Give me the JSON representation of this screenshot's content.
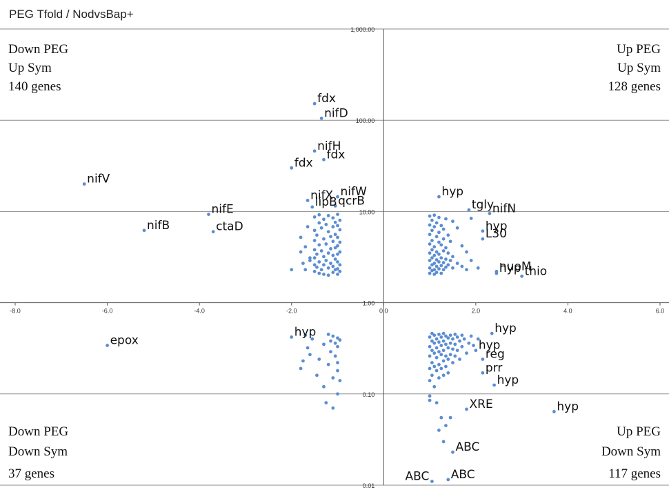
{
  "chart_data": {
    "type": "scatter",
    "title": "PEG Tfold / NodvsBap+",
    "x_axis": {
      "min": -8,
      "max": 6,
      "ticks": [
        "-8.0",
        "-6.0",
        "-4.0",
        "-2.0",
        "0.0",
        "2.0",
        "4.0",
        "6.0"
      ],
      "tick_values": [
        -8,
        -6,
        -4,
        -2,
        0,
        2,
        4,
        6
      ]
    },
    "y_axis": {
      "scale": "log",
      "min": 0.01,
      "max": 1000,
      "ticks": [
        "0.01",
        "0.10",
        "1.00",
        "10.00",
        "100.00",
        "1,000.00"
      ],
      "tick_values": [
        0.01,
        0.1,
        1,
        10,
        100,
        1000
      ]
    },
    "grid": "horizontal",
    "quadrants": {
      "top_left": [
        "Down PEG",
        "Up Sym",
        "140 genes"
      ],
      "top_right": [
        "Up PEG",
        "Up Sym",
        "128 genes"
      ],
      "bottom_left": [
        "Down PEG",
        "Down Sym",
        "37 genes"
      ],
      "bottom_right": [
        "Up PEG",
        "Down Sym",
        "117  genes"
      ]
    },
    "annotations": [
      {
        "label": "fdx",
        "x": -1.5,
        "y": 152
      },
      {
        "label": "nifD",
        "x": -1.35,
        "y": 105
      },
      {
        "label": "nifH",
        "x": -1.5,
        "y": 46
      },
      {
        "label": "fdx",
        "x": -1.3,
        "y": 37
      },
      {
        "label": "fdx",
        "x": -2.0,
        "y": 30
      },
      {
        "label": "nifV",
        "x": -6.5,
        "y": 20
      },
      {
        "label": "nifX",
        "x": -1.65,
        "y": 13.2
      },
      {
        "label": "nifW",
        "x": -1.0,
        "y": 14.5
      },
      {
        "label": "lipB",
        "x": -1.55,
        "y": 11.2
      },
      {
        "label": "qcrB",
        "x": -1.05,
        "y": 11.5
      },
      {
        "label": "nifE",
        "x": -3.8,
        "y": 9.3
      },
      {
        "label": "nifB",
        "x": -5.2,
        "y": 6.2
      },
      {
        "label": "ctaD",
        "x": -3.7,
        "y": 6.0
      },
      {
        "label": "hyp",
        "x": 1.2,
        "y": 14.5
      },
      {
        "label": "tgly",
        "x": 1.85,
        "y": 10.4
      },
      {
        "label": "nifN",
        "x": 2.3,
        "y": 9.5
      },
      {
        "label": "hyp",
        "x": 2.15,
        "y": 6.1
      },
      {
        "label": "L30",
        "x": 2.15,
        "y": 5.0
      },
      {
        "label": "nuoM",
        "x": 2.45,
        "y": 2.2
      },
      {
        "label": "hyp",
        "x": 2.45,
        "y": 2.1
      },
      {
        "label": "thio",
        "x": 3.0,
        "y": 1.95
      },
      {
        "label": "epox",
        "x": -6.0,
        "y": 0.34
      },
      {
        "label": "hyp",
        "x": -2.0,
        "y": 0.42
      },
      {
        "label": "hyp",
        "x": 2.35,
        "y": 0.46
      },
      {
        "label": "hyp",
        "x": 2.0,
        "y": 0.3
      },
      {
        "label": "reg",
        "x": 2.15,
        "y": 0.24
      },
      {
        "label": "prr",
        "x": 2.15,
        "y": 0.17
      },
      {
        "label": "hyp",
        "x": 2.4,
        "y": 0.125
      },
      {
        "label": "XRE",
        "x": 1.8,
        "y": 0.068
      },
      {
        "label": "hyp",
        "x": 3.7,
        "y": 0.064
      },
      {
        "label": "ABC",
        "x": 1.5,
        "y": 0.023
      },
      {
        "label": "ABC",
        "x": 1.4,
        "y": 0.0115
      },
      {
        "label": "ABC",
        "x": 1.05,
        "y": 0.011
      }
    ],
    "points": [
      [
        -1.5,
        152
      ],
      [
        -1.35,
        105
      ],
      [
        -1.5,
        46
      ],
      [
        -1.3,
        37
      ],
      [
        -2.0,
        30
      ],
      [
        -6.5,
        20
      ],
      [
        -1.65,
        13.2
      ],
      [
        -1.0,
        14.5
      ],
      [
        -1.55,
        11.2
      ],
      [
        -1.05,
        11.5
      ],
      [
        -3.8,
        9.3
      ],
      [
        -5.2,
        6.2
      ],
      [
        -3.7,
        6.0
      ],
      [
        -2.0,
        2.3
      ],
      [
        -1.8,
        5.2
      ],
      [
        -1.8,
        3.6
      ],
      [
        -1.75,
        2.7
      ],
      [
        -1.7,
        4.1
      ],
      [
        -1.7,
        2.3
      ],
      [
        -1.65,
        6.8
      ],
      [
        -1.6,
        2.9
      ],
      [
        -1.6,
        3.1
      ],
      [
        -1.5,
        8.7
      ],
      [
        -1.5,
        6.2
      ],
      [
        -1.5,
        4.8
      ],
      [
        -1.5,
        3.8
      ],
      [
        -1.5,
        3.1
      ],
      [
        -1.5,
        2.6
      ],
      [
        -1.5,
        2.2
      ],
      [
        -1.45,
        5.5
      ],
      [
        -1.45,
        3.4
      ],
      [
        -1.45,
        2.45
      ],
      [
        -1.4,
        9.2
      ],
      [
        -1.4,
        7.5
      ],
      [
        -1.4,
        4.3
      ],
      [
        -1.4,
        2.8
      ],
      [
        -1.4,
        2.1
      ],
      [
        -1.35,
        6.6
      ],
      [
        -1.35,
        3.7
      ],
      [
        -1.35,
        2.3
      ],
      [
        -1.3,
        8.2
      ],
      [
        -1.3,
        5.0
      ],
      [
        -1.3,
        3.2
      ],
      [
        -1.3,
        2.6
      ],
      [
        -1.3,
        2.05
      ],
      [
        -1.25,
        7.2
      ],
      [
        -1.25,
        4.4
      ],
      [
        -1.25,
        2.9
      ],
      [
        -1.2,
        9.0
      ],
      [
        -1.2,
        6.0
      ],
      [
        -1.2,
        3.5
      ],
      [
        -1.2,
        2.4
      ],
      [
        -1.2,
        2.0
      ],
      [
        -1.15,
        5.3
      ],
      [
        -1.15,
        3.9
      ],
      [
        -1.15,
        2.7
      ],
      [
        -1.1,
        8.5
      ],
      [
        -1.1,
        6.8
      ],
      [
        -1.1,
        4.7
      ],
      [
        -1.1,
        3.3
      ],
      [
        -1.1,
        2.5
      ],
      [
        -1.1,
        2.15
      ],
      [
        -1.05,
        7.6
      ],
      [
        -1.05,
        5.6
      ],
      [
        -1.05,
        4.0
      ],
      [
        -1.05,
        3.0
      ],
      [
        -1.05,
        2.3
      ],
      [
        -1.0,
        9.3
      ],
      [
        -1.0,
        7.0
      ],
      [
        -1.0,
        5.2
      ],
      [
        -1.0,
        4.2
      ],
      [
        -1.0,
        3.4
      ],
      [
        -1.0,
        2.8
      ],
      [
        -1.0,
        2.35
      ],
      [
        -1.0,
        2.05
      ],
      [
        -0.95,
        8.0
      ],
      [
        -0.95,
        6.3
      ],
      [
        -0.95,
        4.6
      ],
      [
        -0.95,
        3.6
      ],
      [
        -0.95,
        2.6
      ],
      [
        -0.95,
        2.2
      ],
      [
        1.2,
        14.5
      ],
      [
        1.85,
        10.4
      ],
      [
        2.3,
        9.5
      ],
      [
        2.15,
        6.1
      ],
      [
        2.15,
        5.0
      ],
      [
        2.45,
        2.2
      ],
      [
        2.45,
        2.1
      ],
      [
        3.0,
        1.95
      ],
      [
        1.0,
        8.9
      ],
      [
        1.0,
        7.1
      ],
      [
        1.0,
        5.6
      ],
      [
        1.0,
        4.4
      ],
      [
        1.0,
        3.5
      ],
      [
        1.0,
        2.9
      ],
      [
        1.0,
        2.4
      ],
      [
        1.0,
        2.1
      ],
      [
        1.05,
        8.0
      ],
      [
        1.05,
        6.2
      ],
      [
        1.05,
        4.8
      ],
      [
        1.05,
        3.8
      ],
      [
        1.05,
        3.1
      ],
      [
        1.05,
        2.6
      ],
      [
        1.05,
        2.25
      ],
      [
        1.1,
        9.1
      ],
      [
        1.1,
        6.8
      ],
      [
        1.1,
        4.1
      ],
      [
        1.1,
        3.3
      ],
      [
        1.1,
        2.7
      ],
      [
        1.1,
        2.3
      ],
      [
        1.1,
        2.05
      ],
      [
        1.15,
        7.5
      ],
      [
        1.15,
        5.3
      ],
      [
        1.15,
        3.6
      ],
      [
        1.15,
        2.95
      ],
      [
        1.15,
        2.5
      ],
      [
        1.15,
        2.15
      ],
      [
        1.2,
        8.6
      ],
      [
        1.2,
        5.9
      ],
      [
        1.2,
        4.6
      ],
      [
        1.2,
        3.4
      ],
      [
        1.2,
        2.8
      ],
      [
        1.2,
        2.35
      ],
      [
        1.25,
        7.0
      ],
      [
        1.25,
        4.3
      ],
      [
        1.25,
        3.1
      ],
      [
        1.25,
        2.55
      ],
      [
        1.25,
        2.1
      ],
      [
        1.3,
        6.4
      ],
      [
        1.3,
        5.0
      ],
      [
        1.3,
        3.7
      ],
      [
        1.3,
        2.75
      ],
      [
        1.3,
        2.3
      ],
      [
        1.35,
        8.3
      ],
      [
        1.35,
        4.0
      ],
      [
        1.35,
        3.0
      ],
      [
        1.35,
        2.45
      ],
      [
        1.4,
        5.5
      ],
      [
        1.4,
        3.5
      ],
      [
        1.4,
        2.6
      ],
      [
        1.45,
        4.7
      ],
      [
        1.45,
        2.9
      ],
      [
        1.5,
        7.8
      ],
      [
        1.5,
        3.2
      ],
      [
        1.5,
        2.4
      ],
      [
        1.6,
        6.6
      ],
      [
        1.6,
        2.7
      ],
      [
        1.7,
        4.2
      ],
      [
        1.7,
        2.5
      ],
      [
        1.8,
        3.6
      ],
      [
        1.8,
        2.3
      ],
      [
        1.9,
        8.4
      ],
      [
        1.9,
        2.9
      ],
      [
        2.05,
        2.4
      ],
      [
        -6.0,
        0.34
      ],
      [
        -2.0,
        0.42
      ],
      [
        -1.8,
        0.19
      ],
      [
        -1.75,
        0.23
      ],
      [
        -1.7,
        0.44
      ],
      [
        -1.65,
        0.32
      ],
      [
        -1.6,
        0.27
      ],
      [
        -1.55,
        0.4
      ],
      [
        -1.45,
        0.16
      ],
      [
        -1.4,
        0.24
      ],
      [
        -1.3,
        0.35
      ],
      [
        -1.3,
        0.12
      ],
      [
        -1.25,
        0.08
      ],
      [
        -1.2,
        0.45
      ],
      [
        -1.2,
        0.21
      ],
      [
        -1.15,
        0.38
      ],
      [
        -1.15,
        0.29
      ],
      [
        -1.1,
        0.43
      ],
      [
        -1.1,
        0.15
      ],
      [
        -1.1,
        0.07
      ],
      [
        -1.05,
        0.36
      ],
      [
        -1.05,
        0.26
      ],
      [
        -1.0,
        0.41
      ],
      [
        -1.0,
        0.33
      ],
      [
        -1.0,
        0.22
      ],
      [
        -1.0,
        0.18
      ],
      [
        -1.0,
        0.1
      ],
      [
        -0.95,
        0.39
      ],
      [
        -0.95,
        0.14
      ],
      [
        2.35,
        0.46
      ],
      [
        2.0,
        0.3
      ],
      [
        2.15,
        0.24
      ],
      [
        2.15,
        0.17
      ],
      [
        2.4,
        0.125
      ],
      [
        1.8,
        0.068
      ],
      [
        3.7,
        0.064
      ],
      [
        1.5,
        0.023
      ],
      [
        1.4,
        0.0115
      ],
      [
        1.05,
        0.011
      ],
      [
        1.0,
        0.42
      ],
      [
        1.0,
        0.33
      ],
      [
        1.0,
        0.26
      ],
      [
        1.0,
        0.19
      ],
      [
        1.0,
        0.14
      ],
      [
        1.0,
        0.095
      ],
      [
        1.0,
        0.085
      ],
      [
        1.05,
        0.46
      ],
      [
        1.05,
        0.38
      ],
      [
        1.05,
        0.3
      ],
      [
        1.05,
        0.22
      ],
      [
        1.05,
        0.16
      ],
      [
        1.1,
        0.44
      ],
      [
        1.1,
        0.36
      ],
      [
        1.1,
        0.28
      ],
      [
        1.1,
        0.2
      ],
      [
        1.1,
        0.12
      ],
      [
        1.15,
        0.4
      ],
      [
        1.15,
        0.32
      ],
      [
        1.15,
        0.25
      ],
      [
        1.15,
        0.18
      ],
      [
        1.15,
        0.08
      ],
      [
        1.2,
        0.45
      ],
      [
        1.2,
        0.37
      ],
      [
        1.2,
        0.29
      ],
      [
        1.2,
        0.21
      ],
      [
        1.2,
        0.15
      ],
      [
        1.2,
        0.04
      ],
      [
        1.25,
        0.42
      ],
      [
        1.25,
        0.34
      ],
      [
        1.25,
        0.27
      ],
      [
        1.25,
        0.19
      ],
      [
        1.25,
        0.055
      ],
      [
        1.3,
        0.46
      ],
      [
        1.3,
        0.38
      ],
      [
        1.3,
        0.3
      ],
      [
        1.3,
        0.23
      ],
      [
        1.3,
        0.16
      ],
      [
        1.3,
        0.03
      ],
      [
        1.35,
        0.43
      ],
      [
        1.35,
        0.35
      ],
      [
        1.35,
        0.26
      ],
      [
        1.35,
        0.2
      ],
      [
        1.35,
        0.045
      ],
      [
        1.4,
        0.41
      ],
      [
        1.4,
        0.32
      ],
      [
        1.4,
        0.24
      ],
      [
        1.4,
        0.17
      ],
      [
        1.45,
        0.44
      ],
      [
        1.45,
        0.36
      ],
      [
        1.45,
        0.27
      ],
      [
        1.45,
        0.055
      ],
      [
        1.5,
        0.4
      ],
      [
        1.5,
        0.31
      ],
      [
        1.5,
        0.22
      ],
      [
        1.55,
        0.45
      ],
      [
        1.55,
        0.35
      ],
      [
        1.55,
        0.26
      ],
      [
        1.6,
        0.42
      ],
      [
        1.6,
        0.3
      ],
      [
        1.65,
        0.38
      ],
      [
        1.65,
        0.24
      ],
      [
        1.7,
        0.44
      ],
      [
        1.7,
        0.33
      ],
      [
        1.75,
        0.4
      ],
      [
        1.8,
        0.28
      ],
      [
        1.85,
        0.36
      ],
      [
        1.9,
        0.43
      ],
      [
        1.95,
        0.34
      ],
      [
        2.05,
        0.4
      ]
    ]
  }
}
